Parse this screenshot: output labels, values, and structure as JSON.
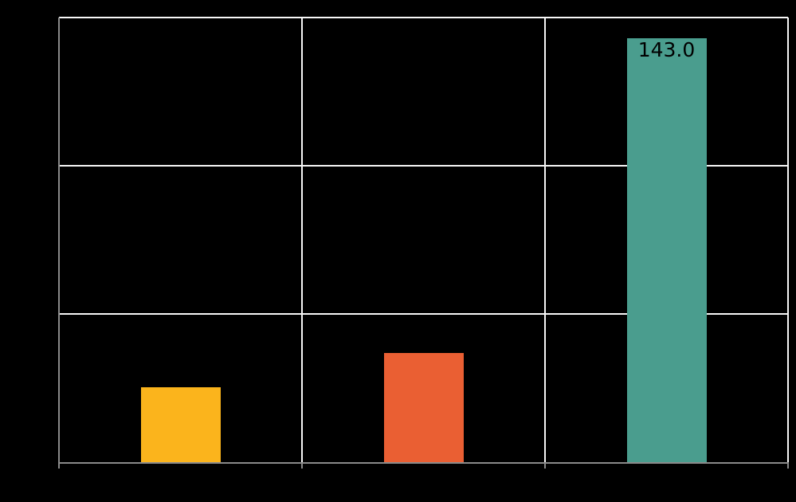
{
  "chart_data": {
    "type": "bar",
    "categories": [
      "",
      "",
      ""
    ],
    "values": [
      25.3,
      36.8,
      143.0
    ],
    "value_labels": [
      "",
      "",
      "143.0"
    ],
    "colors": [
      "#FBB41C",
      "#EA5F33",
      "#4A9D8E"
    ],
    "title": "",
    "xlabel": "",
    "ylabel": "",
    "ylim": [
      0,
      150
    ],
    "gridline_step": 50,
    "grid": true,
    "legend": "none",
    "background_color": "#000000",
    "gridline_color": "#F7F7F7",
    "axis_color": "#8A8A8A",
    "text_color": "#000000"
  }
}
